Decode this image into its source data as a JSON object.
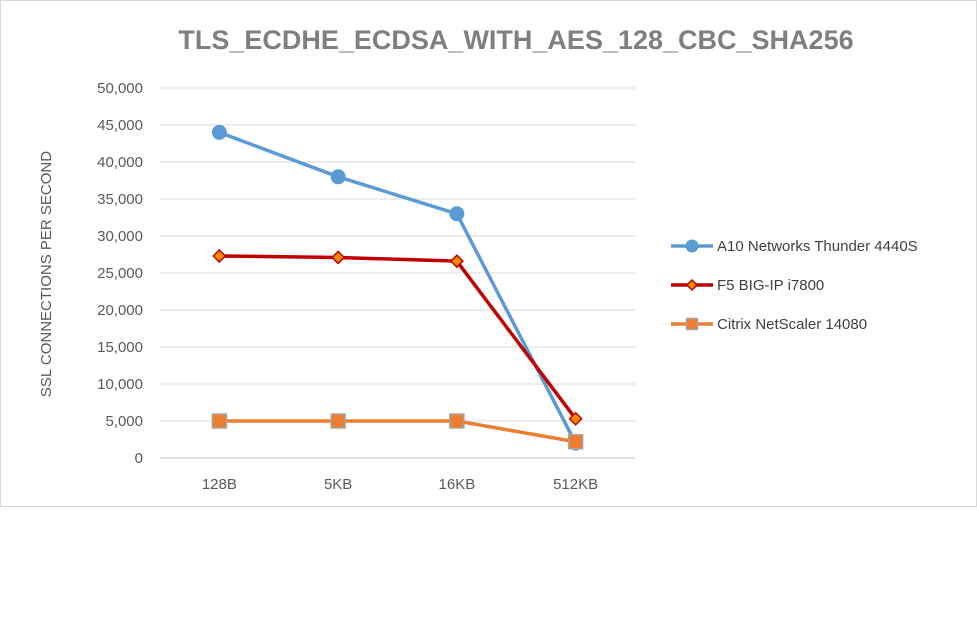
{
  "chart_data": {
    "type": "line",
    "title": "TLS_ECDHE_ECDSA_WITH_AES_128_CBC_SHA256",
    "xlabel": "",
    "ylabel": "SSL CONNECTIONS PER SECOND",
    "categories": [
      "128B",
      "5KB",
      "16KB",
      "512KB"
    ],
    "ylim": [
      0,
      50000
    ],
    "yticks": [
      "0",
      "5,000",
      "10,000",
      "15,000",
      "20,000",
      "25,000",
      "30,000",
      "35,000",
      "40,000",
      "45,000",
      "50,000"
    ],
    "grid": true,
    "legend_position": "right",
    "series": [
      {
        "name": "A10 Networks Thunder 4440S",
        "values": [
          44000,
          38000,
          33000,
          2000
        ],
        "color": "#5b9bd5",
        "marker": "circle"
      },
      {
        "name": "F5 BIG-IP i7800",
        "values": [
          27300,
          27100,
          26600,
          5300
        ],
        "color": "#c00000",
        "marker": "diamond"
      },
      {
        "name": "Citrix NetScaler 14080",
        "values": [
          5000,
          5000,
          5000,
          2200
        ],
        "color": "#ed7d31",
        "marker": "square"
      }
    ]
  }
}
